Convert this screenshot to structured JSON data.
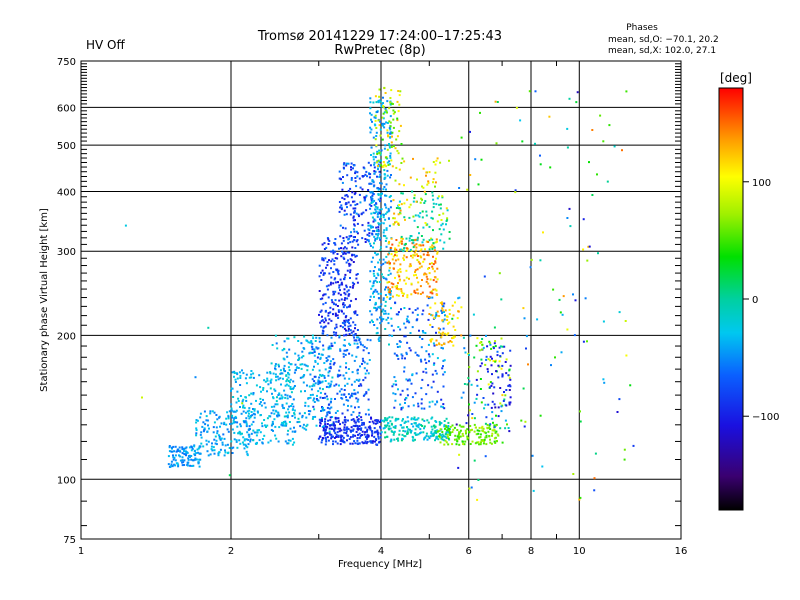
{
  "header": {
    "status": "HV Off",
    "status_color": "#e02020",
    "title": "Tromsø 20141229 17:24:00–17:25:43",
    "subtitle": "RwPretec (8p)",
    "phases_heading": "Phases",
    "phases_line1": "mean, sd,O: −70.1, 20.2",
    "phases_line2": "mean, sd,X: 102.0, 27.1"
  },
  "colorbar": {
    "unit": "[deg]",
    "ticks": [
      {
        "value": 100,
        "label": "100"
      },
      {
        "value": 0,
        "label": "0"
      },
      {
        "value": -100,
        "label": "−100"
      }
    ],
    "range": [
      -180,
      180
    ]
  },
  "chart_data": {
    "type": "scatter",
    "xlabel": "Frequency [MHz]",
    "ylabel": "Stationary phase Virtual Height [km]",
    "xscale": "log",
    "yscale": "log",
    "xlim": [
      1,
      16
    ],
    "ylim": [
      75,
      750
    ],
    "xticks": [
      {
        "value": 1,
        "label": "1"
      },
      {
        "value": 2,
        "label": "2"
      },
      {
        "value": 4,
        "label": "4"
      },
      {
        "value": 6,
        "label": "6"
      },
      {
        "value": 8,
        "label": "8"
      },
      {
        "value": 10,
        "label": "10"
      },
      {
        "value": 16,
        "label": "16"
      }
    ],
    "yticks": [
      {
        "value": 75,
        "label": "75"
      },
      {
        "value": 100,
        "label": "100"
      },
      {
        "value": 200,
        "label": "200"
      },
      {
        "value": 300,
        "label": "300"
      },
      {
        "value": 400,
        "label": "400"
      },
      {
        "value": 500,
        "label": "500"
      },
      {
        "value": 600,
        "label": "600"
      },
      {
        "value": 750,
        "label": "750"
      }
    ],
    "major_grid_x": [
      1,
      2,
      4,
      6,
      8,
      10,
      16
    ],
    "major_grid_y": [
      100,
      200,
      300,
      400,
      500,
      600
    ],
    "minor_x": [
      3,
      5,
      7,
      9
    ],
    "minor_y": [
      80,
      90,
      110,
      120,
      130,
      140,
      150,
      160,
      170,
      180,
      190,
      210,
      220,
      230,
      240,
      250,
      260,
      270,
      280,
      290,
      310,
      320,
      330,
      340,
      350,
      360,
      370,
      380,
      390,
      410,
      420,
      430,
      440,
      450,
      460,
      470,
      480,
      490,
      510,
      520,
      530,
      540,
      550,
      560,
      570,
      580,
      590,
      610,
      620,
      630,
      640,
      650,
      660,
      670,
      680,
      690,
      700,
      710,
      720,
      730,
      740
    ],
    "grid": true,
    "clusters": [
      {
        "f": [
          1.5,
          1.75
        ],
        "h": [
          106,
          118
        ],
        "phase": [
          -60,
          -30
        ],
        "n": 110
      },
      {
        "f": [
          1.7,
          2.2
        ],
        "h": [
          112,
          140
        ],
        "phase": [
          -60,
          -20
        ],
        "n": 160
      },
      {
        "f": [
          2.0,
          2.7
        ],
        "h": [
          118,
          170
        ],
        "phase": [
          -55,
          -15
        ],
        "n": 220
      },
      {
        "f": [
          2.4,
          3.2
        ],
        "h": [
          125,
          200
        ],
        "phase": [
          -60,
          -10
        ],
        "n": 240
      },
      {
        "f": [
          3.0,
          4.0
        ],
        "h": [
          118,
          135
        ],
        "phase": [
          -110,
          -70
        ],
        "n": 260
      },
      {
        "f": [
          2.9,
          3.8
        ],
        "h": [
          135,
          200
        ],
        "phase": [
          -90,
          -30
        ],
        "n": 200
      },
      {
        "f": [
          3.0,
          3.6
        ],
        "h": [
          200,
          320
        ],
        "phase": [
          -115,
          -60
        ],
        "n": 260
      },
      {
        "f": [
          3.3,
          4.0
        ],
        "h": [
          310,
          460
        ],
        "phase": [
          -110,
          -40
        ],
        "n": 200
      },
      {
        "f": [
          3.8,
          4.2
        ],
        "h": [
          190,
          630
        ],
        "phase": [
          -60,
          -10
        ],
        "n": 320
      },
      {
        "f": [
          3.9,
          4.4
        ],
        "h": [
          450,
          660
        ],
        "phase": [
          40,
          130
        ],
        "n": 80
      },
      {
        "f": [
          4.0,
          5.5
        ],
        "h": [
          120,
          135
        ],
        "phase": [
          -40,
          10
        ],
        "n": 200
      },
      {
        "f": [
          4.2,
          5.4
        ],
        "h": [
          140,
          240
        ],
        "phase": [
          -100,
          -20
        ],
        "n": 180
      },
      {
        "f": [
          4.1,
          5.2
        ],
        "h": [
          240,
          320
        ],
        "phase": [
          90,
          160
        ],
        "n": 200
      },
      {
        "f": [
          4.3,
          5.5
        ],
        "h": [
          300,
          400
        ],
        "phase": [
          -30,
          20
        ],
        "n": 90
      },
      {
        "f": [
          4.2,
          5.5
        ],
        "h": [
          340,
          470
        ],
        "phase": [
          60,
          140
        ],
        "n": 70
      },
      {
        "f": [
          5.0,
          5.8
        ],
        "h": [
          190,
          235
        ],
        "phase": [
          100,
          140
        ],
        "n": 60
      },
      {
        "f": [
          5.2,
          6.9
        ],
        "h": [
          118,
          130
        ],
        "phase": [
          40,
          80
        ],
        "n": 140
      },
      {
        "f": [
          5.8,
          7.3
        ],
        "h": [
          125,
          200
        ],
        "phase": [
          -120,
          120
        ],
        "n": 110
      },
      {
        "f": [
          6.5,
          7.3
        ],
        "h": [
          140,
          190
        ],
        "phase": [
          -120,
          -80
        ],
        "n": 40
      },
      {
        "f": [
          5.5,
          13.0
        ],
        "h": [
          90,
          650
        ],
        "phase": [
          -130,
          150
        ],
        "n": 130
      },
      {
        "f": [
          1.2,
          2.5
        ],
        "h": [
          95,
          350
        ],
        "phase": [
          -60,
          150
        ],
        "n": 6
      }
    ]
  }
}
